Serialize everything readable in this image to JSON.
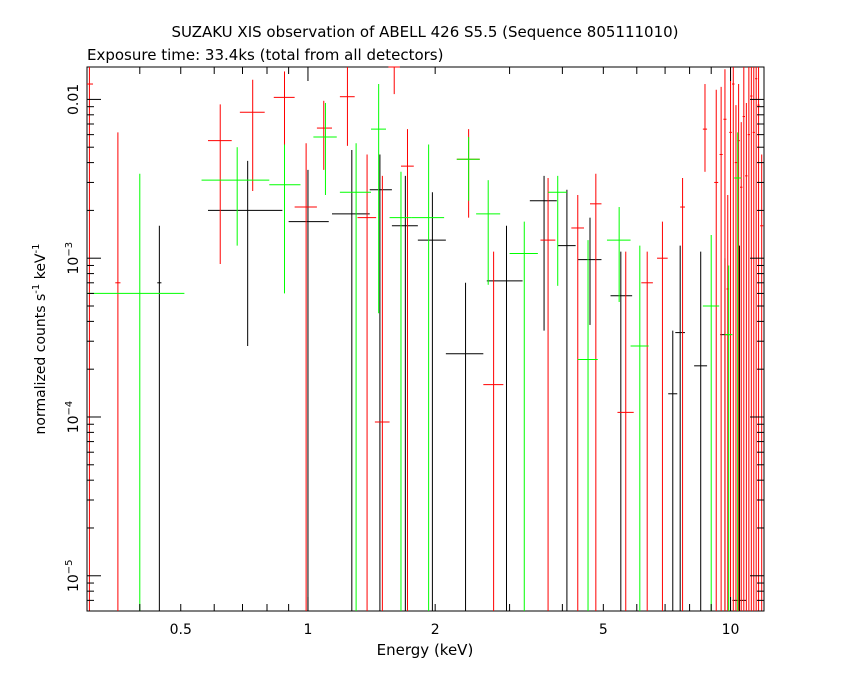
{
  "chart_data": {
    "type": "scatter",
    "title": "SUZAKU XIS observation of ABELL 426 S5.5 (Sequence 805111010)",
    "subtitle": "Exposure time: 33.4ks (total from all detectors)",
    "xlabel": "Energy (keV)",
    "ylabel": "normalized counts s^-1 keV^-1",
    "x_scale": "log",
    "y_scale": "log",
    "xlim": [
      0.3,
      12
    ],
    "ylim": [
      6e-06,
      0.016
    ],
    "x_ticks": [
      {
        "value": 0.5,
        "label": "0.5"
      },
      {
        "value": 1,
        "label": "1"
      },
      {
        "value": 2,
        "label": "2"
      },
      {
        "value": 5,
        "label": "5"
      },
      {
        "value": 10,
        "label": "10"
      }
    ],
    "y_ticks": [
      {
        "value": 1e-05,
        "base": "10",
        "exp": "−5"
      },
      {
        "value": 0.0001,
        "base": "10",
        "exp": "−4"
      },
      {
        "value": 0.001,
        "base": "10",
        "exp": "−3"
      },
      {
        "value": 0.01,
        "label": "0.01"
      }
    ],
    "grid": false,
    "series": [
      {
        "color": "#000000",
        "points": [
          {
            "x": 0.445,
            "xlo": 0.44,
            "xhi": 0.45,
            "y": 0.0007,
            "ylo": 6e-06,
            "yhi": 0.0016
          },
          {
            "x": 0.72,
            "xlo": 0.58,
            "xhi": 0.87,
            "y": 0.002,
            "ylo": 0.00028,
            "yhi": 0.0041
          },
          {
            "x": 1.0,
            "xlo": 0.9,
            "xhi": 1.12,
            "y": 0.0017,
            "ylo": 6e-06,
            "yhi": 0.0036
          },
          {
            "x": 1.27,
            "xlo": 1.14,
            "xhi": 1.4,
            "y": 0.0019,
            "ylo": 6e-06,
            "yhi": 0.0048
          },
          {
            "x": 1.48,
            "xlo": 1.4,
            "xhi": 1.58,
            "y": 0.0027,
            "ylo": 6e-06,
            "yhi": 0.0045
          },
          {
            "x": 1.7,
            "xlo": 1.58,
            "xhi": 1.82,
            "y": 0.0016,
            "ylo": 6e-06,
            "yhi": 0.0033
          },
          {
            "x": 1.97,
            "xlo": 1.82,
            "xhi": 2.12,
            "y": 0.0013,
            "ylo": 6e-06,
            "yhi": 0.0026
          },
          {
            "x": 2.36,
            "xlo": 2.12,
            "xhi": 2.6,
            "y": 0.00025,
            "ylo": 6e-06,
            "yhi": 0.0007
          },
          {
            "x": 2.95,
            "xlo": 2.65,
            "xhi": 3.22,
            "y": 0.00072,
            "ylo": 6e-06,
            "yhi": 0.0016
          },
          {
            "x": 3.62,
            "xlo": 3.35,
            "xhi": 3.88,
            "y": 0.0023,
            "ylo": 0.00035,
            "yhi": 0.0033
          },
          {
            "x": 4.1,
            "xlo": 3.9,
            "xhi": 4.3,
            "y": 0.0012,
            "ylo": 6e-06,
            "yhi": 0.0027
          },
          {
            "x": 4.65,
            "xlo": 4.35,
            "xhi": 4.95,
            "y": 0.00098,
            "ylo": 0.00038,
            "yhi": 0.0018
          },
          {
            "x": 5.5,
            "xlo": 5.2,
            "xhi": 5.85,
            "y": 0.00058,
            "ylo": 6e-06,
            "yhi": 0.0011
          },
          {
            "x": 7.3,
            "xlo": 7.12,
            "xhi": 7.48,
            "y": 0.00014,
            "ylo": 6e-06,
            "yhi": 0.00035
          },
          {
            "x": 7.6,
            "xlo": 7.4,
            "xhi": 7.8,
            "y": 0.00034,
            "ylo": 6e-06,
            "yhi": 0.0012
          },
          {
            "x": 8.5,
            "xlo": 8.2,
            "xhi": 8.8,
            "y": 0.00021,
            "ylo": 6e-06,
            "yhi": 0.0011
          },
          {
            "x": 9.7,
            "xlo": 9.45,
            "xhi": 9.95,
            "y": 0.00033,
            "ylo": 6e-06,
            "yhi": 0.001
          },
          {
            "x": 10.5,
            "xlo": 10.1,
            "xhi": 10.9,
            "y": 7e-06,
            "ylo": 6e-06,
            "yhi": 0.0012
          }
        ]
      },
      {
        "color": "#ff0000",
        "points": [
          {
            "x": 0.304,
            "xlo": 0.3,
            "xhi": 0.31,
            "y": 0.0125,
            "ylo": 6e-06,
            "yhi": 0.016
          },
          {
            "x": 0.355,
            "xlo": 0.35,
            "xhi": 0.36,
            "y": 0.0007,
            "ylo": 6e-06,
            "yhi": 0.0062
          },
          {
            "x": 0.62,
            "xlo": 0.58,
            "xhi": 0.66,
            "y": 0.0055,
            "ylo": 0.00092,
            "yhi": 0.0093
          },
          {
            "x": 0.74,
            "xlo": 0.69,
            "xhi": 0.79,
            "y": 0.0083,
            "ylo": 0.00265,
            "yhi": 0.0133
          },
          {
            "x": 0.88,
            "xlo": 0.83,
            "xhi": 0.93,
            "y": 0.0103,
            "ylo": 0.0051,
            "yhi": 0.015
          },
          {
            "x": 0.99,
            "xlo": 0.93,
            "xhi": 1.05,
            "y": 0.0021,
            "ylo": 6e-06,
            "yhi": 0.0053
          },
          {
            "x": 1.09,
            "xlo": 1.05,
            "xhi": 1.14,
            "y": 0.0066,
            "ylo": 0.0036,
            "yhi": 0.0098
          },
          {
            "x": 1.24,
            "xlo": 1.19,
            "xhi": 1.29,
            "y": 0.0104,
            "ylo": 0.0051,
            "yhi": 0.0162
          },
          {
            "x": 1.38,
            "xlo": 1.31,
            "xhi": 1.45,
            "y": 0.0018,
            "ylo": 6e-06,
            "yhi": 0.0045
          },
          {
            "x": 1.5,
            "xlo": 1.44,
            "xhi": 1.56,
            "y": 9.3e-05,
            "ylo": 6e-06,
            "yhi": 0.0033
          },
          {
            "x": 1.6,
            "xlo": 1.55,
            "xhi": 1.65,
            "y": 0.0162,
            "ylo": 0.0108,
            "yhi": 0.018
          },
          {
            "x": 1.72,
            "xlo": 1.66,
            "xhi": 1.78,
            "y": 0.0038,
            "ylo": 6e-06,
            "yhi": 0.0065
          },
          {
            "x": 2.4,
            "xlo": 2.25,
            "xhi": 2.55,
            "y": 0.0042,
            "ylo": 0.0018,
            "yhi": 0.0065
          },
          {
            "x": 2.75,
            "xlo": 2.6,
            "xhi": 2.9,
            "y": 0.00016,
            "ylo": 6e-06,
            "yhi": 0.0011
          },
          {
            "x": 3.7,
            "xlo": 3.55,
            "xhi": 3.85,
            "y": 0.0013,
            "ylo": 6e-06,
            "yhi": 0.0032
          },
          {
            "x": 4.35,
            "xlo": 4.2,
            "xhi": 4.5,
            "y": 0.00155,
            "ylo": 6e-06,
            "yhi": 0.0025
          },
          {
            "x": 4.8,
            "xlo": 4.65,
            "xhi": 4.95,
            "y": 0.0022,
            "ylo": 6e-06,
            "yhi": 0.0034
          },
          {
            "x": 5.65,
            "xlo": 5.4,
            "xhi": 5.9,
            "y": 0.000107,
            "ylo": 6e-06,
            "yhi": 0.0011
          },
          {
            "x": 6.35,
            "xlo": 6.15,
            "xhi": 6.55,
            "y": 0.0007,
            "ylo": 6e-06,
            "yhi": 0.0011
          },
          {
            "x": 6.9,
            "xlo": 6.7,
            "xhi": 7.1,
            "y": 0.001,
            "ylo": 6e-06,
            "yhi": 0.0017
          },
          {
            "x": 7.7,
            "xlo": 7.6,
            "xhi": 7.8,
            "y": 0.0021,
            "ylo": 6e-06,
            "yhi": 0.0032
          },
          {
            "x": 8.7,
            "xlo": 8.6,
            "xhi": 8.8,
            "y": 0.0065,
            "ylo": 0.0035,
            "yhi": 0.0125
          },
          {
            "x": 9.25,
            "xlo": 9.15,
            "xhi": 9.35,
            "y": 0.003,
            "ylo": 6e-06,
            "yhi": 0.0115
          },
          {
            "x": 9.5,
            "xlo": 9.42,
            "xhi": 9.58,
            "y": 0.0045,
            "ylo": 6e-06,
            "yhi": 0.012
          },
          {
            "x": 9.7,
            "xlo": 9.62,
            "xhi": 9.78,
            "y": 0.0075,
            "ylo": 6e-06,
            "yhi": 0.0155
          },
          {
            "x": 9.85,
            "xlo": 9.78,
            "xhi": 9.92,
            "y": 0.00064,
            "ylo": 6e-06,
            "yhi": 0.0025
          },
          {
            "x": 10.0,
            "xlo": 9.93,
            "xhi": 10.07,
            "y": 0.0062,
            "ylo": 6e-06,
            "yhi": 0.016
          },
          {
            "x": 10.15,
            "xlo": 10.08,
            "xhi": 10.22,
            "y": 0.0125,
            "ylo": 6e-06,
            "yhi": 0.016
          },
          {
            "x": 10.3,
            "xlo": 10.23,
            "xhi": 10.37,
            "y": 0.004,
            "ylo": 6e-06,
            "yhi": 0.0092
          },
          {
            "x": 10.45,
            "xlo": 10.38,
            "xhi": 10.52,
            "y": 0.0055,
            "ylo": 6e-06,
            "yhi": 0.0125
          },
          {
            "x": 10.6,
            "xlo": 10.53,
            "xhi": 10.67,
            "y": 0.0028,
            "ylo": 6e-06,
            "yhi": 0.0072
          },
          {
            "x": 10.75,
            "xlo": 10.68,
            "xhi": 10.82,
            "y": 0.0078,
            "ylo": 6e-06,
            "yhi": 0.016
          },
          {
            "x": 10.9,
            "xlo": 10.83,
            "xhi": 10.97,
            "y": 0.0033,
            "ylo": 6e-06,
            "yhi": 0.0095
          },
          {
            "x": 11.05,
            "xlo": 10.98,
            "xhi": 11.12,
            "y": 0.006,
            "ylo": 6e-06,
            "yhi": 0.016
          },
          {
            "x": 11.2,
            "xlo": 11.13,
            "xhi": 11.27,
            "y": 0.0105,
            "ylo": 6e-06,
            "yhi": 0.016
          },
          {
            "x": 11.35,
            "xlo": 11.28,
            "xhi": 11.42,
            "y": 0.0062,
            "ylo": 6e-06,
            "yhi": 0.016
          },
          {
            "x": 11.5,
            "xlo": 11.43,
            "xhi": 11.57,
            "y": 0.0135,
            "ylo": 6e-06,
            "yhi": 0.016
          },
          {
            "x": 11.65,
            "xlo": 11.58,
            "xhi": 11.72,
            "y": 0.0092,
            "ylo": 6e-06,
            "yhi": 0.016
          },
          {
            "x": 11.85,
            "xlo": 11.75,
            "xhi": 11.95,
            "y": 0.0016,
            "ylo": 6e-06,
            "yhi": 0.0045
          }
        ]
      },
      {
        "color": "#00ff00",
        "points": [
          {
            "x": 0.4,
            "xlo": 0.3,
            "xhi": 0.51,
            "y": 0.0006,
            "ylo": 6e-06,
            "yhi": 0.0034
          },
          {
            "x": 0.68,
            "xlo": 0.56,
            "xhi": 0.81,
            "y": 0.0031,
            "ylo": 0.0012,
            "yhi": 0.005
          },
          {
            "x": 0.88,
            "xlo": 0.81,
            "xhi": 0.96,
            "y": 0.0029,
            "ylo": 0.0006,
            "yhi": 0.0052
          },
          {
            "x": 1.1,
            "xlo": 1.03,
            "xhi": 1.17,
            "y": 0.0058,
            "ylo": 0.0025,
            "yhi": 0.0095
          },
          {
            "x": 1.3,
            "xlo": 1.19,
            "xhi": 1.41,
            "y": 0.0026,
            "ylo": 6e-06,
            "yhi": 0.0053
          },
          {
            "x": 1.47,
            "xlo": 1.41,
            "xhi": 1.53,
            "y": 0.0065,
            "ylo": 0.00045,
            "yhi": 0.0125
          },
          {
            "x": 1.66,
            "xlo": 1.56,
            "xhi": 1.76,
            "y": 0.0018,
            "ylo": 6e-06,
            "yhi": 0.0035
          },
          {
            "x": 1.93,
            "xlo": 1.76,
            "xhi": 2.1,
            "y": 0.0018,
            "ylo": 6e-06,
            "yhi": 0.0052
          },
          {
            "x": 2.4,
            "xlo": 2.25,
            "xhi": 2.55,
            "y": 0.0042,
            "ylo": 0.0023,
            "yhi": 0.0058
          },
          {
            "x": 2.67,
            "xlo": 2.5,
            "xhi": 2.85,
            "y": 0.0019,
            "ylo": 0.00068,
            "yhi": 0.0031
          },
          {
            "x": 3.25,
            "xlo": 3.0,
            "xhi": 3.5,
            "y": 0.00107,
            "ylo": 6e-06,
            "yhi": 0.0017
          },
          {
            "x": 3.9,
            "xlo": 3.7,
            "xhi": 4.1,
            "y": 0.0026,
            "ylo": 0.00067,
            "yhi": 0.0033
          },
          {
            "x": 4.6,
            "xlo": 4.35,
            "xhi": 4.85,
            "y": 0.00023,
            "ylo": 6e-06,
            "yhi": 0.0013
          },
          {
            "x": 5.45,
            "xlo": 5.1,
            "xhi": 5.8,
            "y": 0.0013,
            "ylo": 0.00053,
            "yhi": 0.0021
          },
          {
            "x": 6.1,
            "xlo": 5.8,
            "xhi": 6.4,
            "y": 0.00028,
            "ylo": 6e-06,
            "yhi": 0.0012
          },
          {
            "x": 9.0,
            "xlo": 8.6,
            "xhi": 9.4,
            "y": 0.0005,
            "ylo": 6e-06,
            "yhi": 0.0014
          },
          {
            "x": 9.9,
            "xlo": 9.7,
            "xhi": 10.1,
            "y": 0.00033,
            "ylo": 6e-06,
            "yhi": 0.0009
          },
          {
            "x": 10.4,
            "xlo": 10.2,
            "xhi": 10.6,
            "y": 0.0032,
            "ylo": 6e-06,
            "yhi": 0.0062
          }
        ]
      }
    ]
  }
}
